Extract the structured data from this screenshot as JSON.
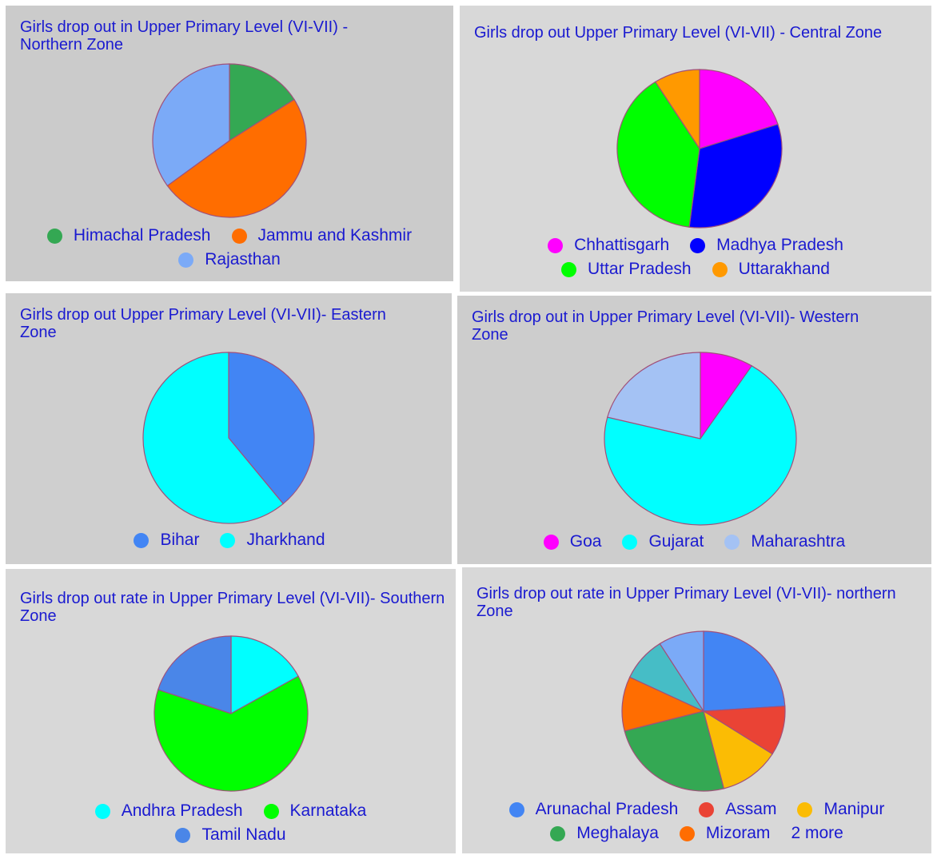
{
  "chart_data": [
    {
      "type": "pie",
      "title": "Girls drop out in Upper Primary Level (VI-VII) - Northern Zone",
      "categories": [
        "Himachal Pradesh",
        "Jammu and Kashmir",
        "Rajasthan"
      ],
      "values": [
        16,
        49,
        35
      ],
      "colors": [
        "#34a853",
        "#ff6d00",
        "#7baaf7"
      ]
    },
    {
      "type": "pie",
      "title": "Girls drop out Upper Primary Level (VI-VII) - Central Zone",
      "categories": [
        "Chhattisgarh",
        "Madhya Pradesh",
        "Uttar Pradesh",
        "Uttarakhand"
      ],
      "values": [
        20,
        32,
        39,
        9
      ],
      "colors": [
        "#ff00ff",
        "#0000ff",
        "#00ff00",
        "#ff9900"
      ]
    },
    {
      "type": "pie",
      "title": " Girls drop out Upper Primary Level (VI-VII)- Eastern Zone",
      "categories": [
        "Bihar",
        "Jharkhand"
      ],
      "values": [
        39,
        61
      ],
      "colors": [
        "#4285f4",
        "#00ffff"
      ]
    },
    {
      "type": "pie",
      "title": "Girls drop out in Upper Primary Level (VI-VII)- Western Zone",
      "categories": [
        "Goa",
        "Gujarat",
        "Maharashtra"
      ],
      "values": [
        9,
        70,
        21
      ],
      "colors": [
        "#ff00ff",
        "#00ffff",
        "#a4c2f4"
      ]
    },
    {
      "type": "pie",
      "title": " Girls drop out rate in Upper Primary Level (VI-VII)- Southern Zone",
      "categories": [
        "Andhra Pradesh",
        "Karnataka",
        "Tamil Nadu"
      ],
      "values": [
        17,
        63,
        20
      ],
      "colors": [
        "#00ffff",
        "#00ff00",
        "#4a86e8"
      ]
    },
    {
      "type": "pie",
      "title": "Girls drop out rate in Upper Primary Level (VI-VII)- northern Zone",
      "categories": [
        "Arunachal Pradesh",
        "Assam",
        "Manipur",
        "Meghalaya",
        "Mizoram",
        null,
        null
      ],
      "values": [
        24,
        10,
        12,
        25,
        11,
        9,
        9
      ],
      "colors": [
        "#4285f4",
        "#ea4335",
        "#fbbc04",
        "#34a853",
        "#ff6d01",
        "#46bdc6",
        "#7baaf7"
      ],
      "legend_more": "2 more"
    }
  ]
}
